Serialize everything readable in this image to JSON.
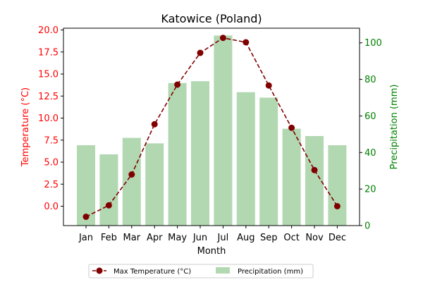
{
  "chart_data": {
    "type": "bar+line",
    "title": "Katowice (Poland)",
    "xlabel": "Month",
    "categories": [
      "Jan",
      "Feb",
      "Mar",
      "Apr",
      "May",
      "Jun",
      "Jul",
      "Aug",
      "Sep",
      "Oct",
      "Nov",
      "Dec"
    ],
    "left_axis": {
      "label": "Temperature (°C)",
      "color": "#ff0000",
      "ylim": [
        -2.2,
        20.2
      ],
      "ticks": [
        0.0,
        2.5,
        5.0,
        7.5,
        10.0,
        12.5,
        15.0,
        17.5,
        20.0
      ],
      "tick_labels": [
        "0.0",
        "2.5",
        "5.0",
        "7.5",
        "10.0",
        "12.5",
        "15.0",
        "17.5",
        "20.0"
      ]
    },
    "right_axis": {
      "label": "Precipitation (mm)",
      "color": "#008000",
      "ylim": [
        0,
        108
      ],
      "ticks": [
        0,
        20,
        40,
        60,
        80,
        100
      ],
      "tick_labels": [
        "0",
        "20",
        "40",
        "60",
        "80",
        "100"
      ]
    },
    "series": [
      {
        "name": "Max Temperature (°C)",
        "type": "line",
        "axis": "left",
        "color": "#800000",
        "style": "dashed",
        "values": [
          -1.2,
          0.1,
          3.6,
          9.3,
          13.8,
          17.4,
          19.1,
          18.6,
          13.7,
          8.9,
          4.1,
          0.0
        ]
      },
      {
        "name": "Precipitation (mm)",
        "type": "bar",
        "axis": "right",
        "color": "#b2d8b2",
        "values": [
          44,
          39,
          48,
          45,
          78,
          79,
          104,
          73,
          70,
          53,
          49,
          44
        ]
      }
    ],
    "legend_position": "bottom-center",
    "grid": false
  }
}
